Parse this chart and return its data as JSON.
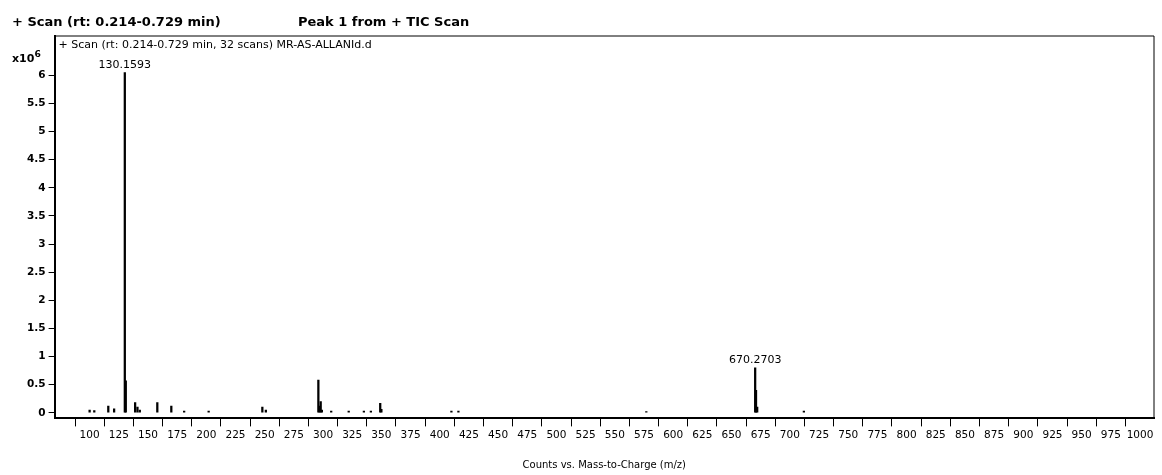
{
  "chart_data": {
    "type": "bar",
    "title": "+ Scan (rt: 0.214-0.729 min)",
    "subtitle": "Peak 1 from + TIC Scan",
    "xlabel": "Counts vs. Mass-to-Charge (m/z)",
    "ylabel": "x10$^{6}$",
    "x": [
      100,
      104,
      116,
      121,
      130.1593,
      131,
      139,
      141,
      143,
      158,
      170,
      181,
      202,
      248,
      251,
      296,
      297,
      298,
      299,
      307,
      322,
      335,
      341,
      349,
      350,
      410,
      416,
      577,
      670.2703,
      671,
      672,
      712
    ],
    "values": [
      0.05,
      0.04,
      0.12,
      0.07,
      6.05,
      0.57,
      0.18,
      0.1,
      0.05,
      0.18,
      0.12,
      0.03,
      0.03,
      0.1,
      0.05,
      0.58,
      0.12,
      0.2,
      0.05,
      0.03,
      0.03,
      0.03,
      0.03,
      0.17,
      0.06,
      0.03,
      0.03,
      0.02,
      0.8,
      0.4,
      0.1,
      0.03
    ],
    "color": "#000000",
    "xlim": [
      70,
      1012
    ],
    "xticks": [
      100,
      125,
      150,
      175,
      200,
      225,
      250,
      275,
      300,
      325,
      350,
      375,
      400,
      425,
      450,
      475,
      500,
      525,
      550,
      575,
      600,
      625,
      650,
      675,
      700,
      725,
      750,
      775,
      800,
      825,
      850,
      875,
      900,
      925,
      950,
      975,
      1000
    ],
    "ylim": [
      -0.1,
      6.7
    ],
    "yticks": [
      0,
      0.5,
      1,
      1.5,
      2,
      2.5,
      3,
      3.5,
      4,
      4.5,
      5,
      5.5,
      6
    ],
    "grid": false,
    "legend": false,
    "annotations": [
      "+ Scan (rt: 0.214-0.729 min, 32 scans) MR-AS-ALLANId.d",
      {
        "text": "130.1593",
        "x": 130.1593,
        "y": 6.05
      },
      {
        "text": "670.2703",
        "x": 670.2703,
        "y": 0.8
      }
    ]
  }
}
